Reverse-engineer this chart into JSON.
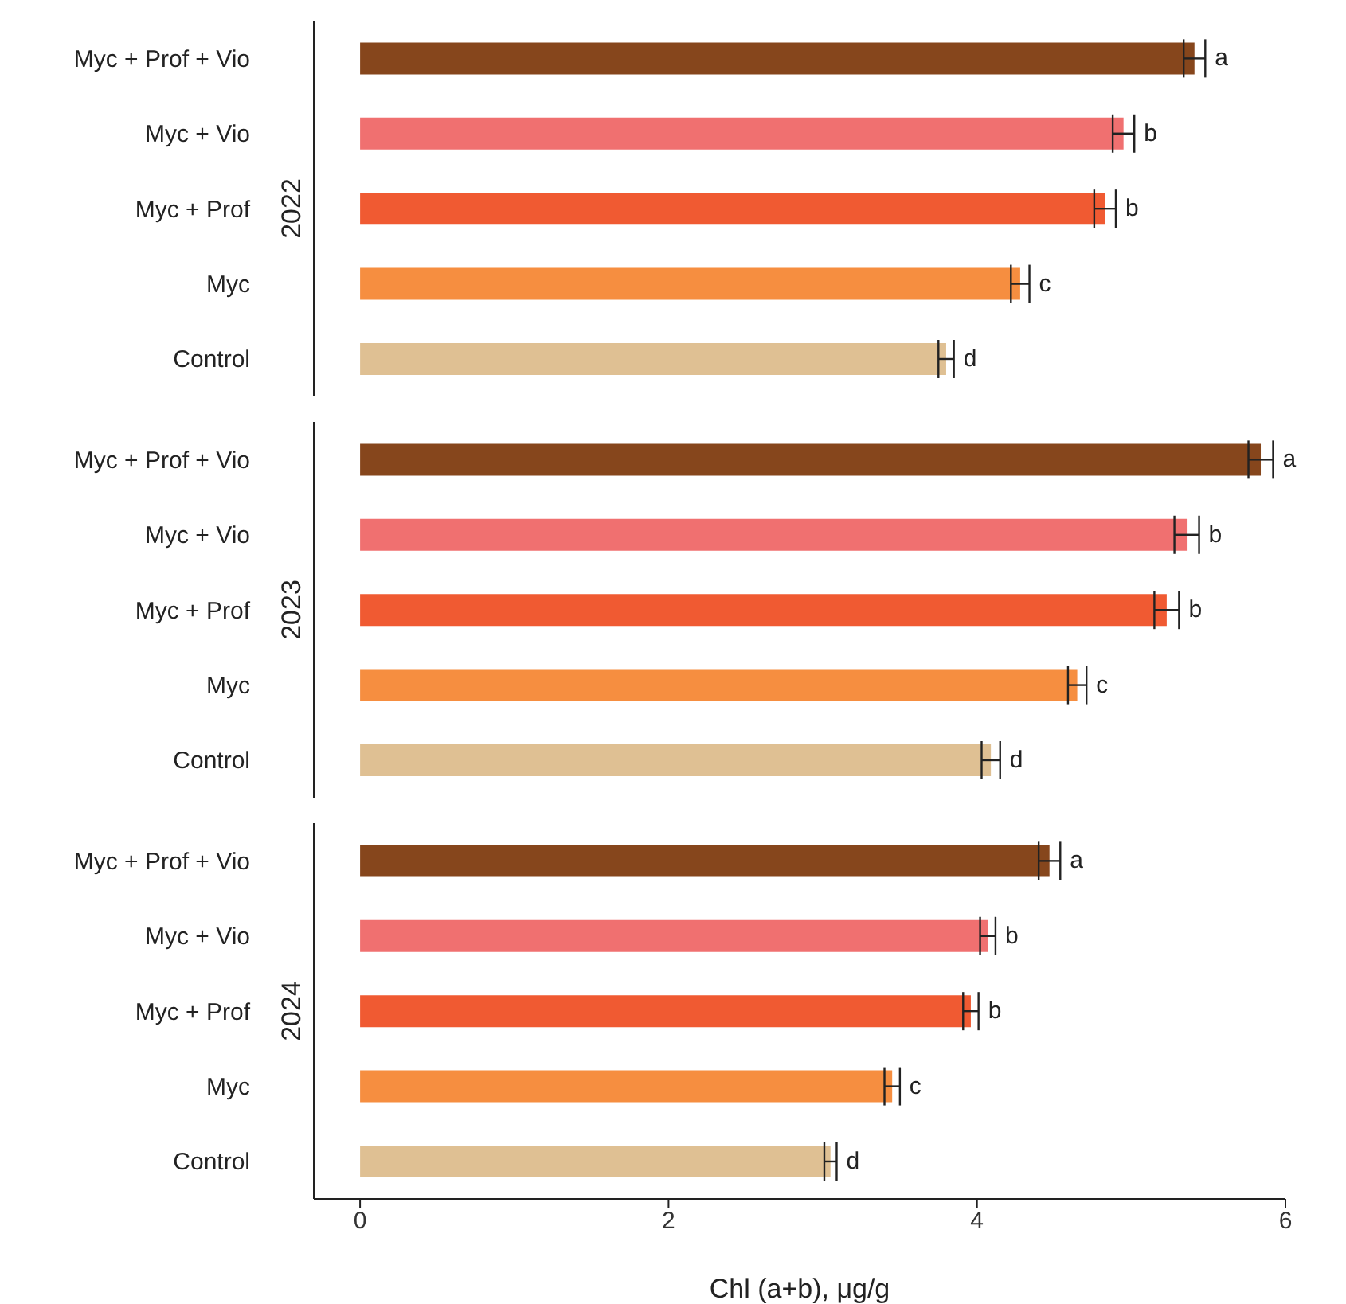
{
  "chart_data": [
    {
      "type": "bar",
      "orientation": "horizontal",
      "ylabel": "2022",
      "categories": [
        "Myc + Prof + Vio",
        "Myc + Vio",
        "Myc + Prof",
        "Myc",
        "Control"
      ],
      "values": [
        5.41,
        4.95,
        4.83,
        4.28,
        3.8
      ],
      "errors": [
        0.07,
        0.07,
        0.07,
        0.06,
        0.05
      ],
      "colors": [
        "#86461c",
        "#f07070",
        "#f05a32",
        "#f68e40",
        "#dfc093"
      ],
      "value_labels": [
        "a",
        "b",
        "b",
        "c",
        "d"
      ],
      "xlim": [
        -0.3,
        6
      ],
      "xticks": [
        0,
        2,
        4,
        6
      ],
      "tick_labels": "y"
    },
    {
      "type": "bar",
      "orientation": "horizontal",
      "ylabel": "2023",
      "categories": [
        "Myc + Prof + Vio",
        "Myc + Vio",
        "Myc + Prof",
        "Myc",
        "Control"
      ],
      "values": [
        5.84,
        5.36,
        5.23,
        4.65,
        4.09
      ],
      "errors": [
        0.08,
        0.08,
        0.08,
        0.06,
        0.06
      ],
      "colors": [
        "#86461c",
        "#f07070",
        "#f05a32",
        "#f68e40",
        "#dfc093"
      ],
      "value_labels": [
        "a",
        "b",
        "b",
        "c",
        "d"
      ],
      "xlim": [
        -0.3,
        6
      ],
      "xticks": [
        0,
        2,
        4,
        6
      ],
      "tick_labels": "y"
    },
    {
      "type": "bar",
      "orientation": "horizontal",
      "ylabel": "2024",
      "xlabel": "Chl (a+b), μg/g",
      "categories": [
        "Myc + Prof + Vio",
        "Myc + Vio",
        "Myc + Prof",
        "Myc",
        "Control"
      ],
      "values": [
        4.47,
        4.07,
        3.96,
        3.45,
        3.05
      ],
      "errors": [
        0.07,
        0.05,
        0.05,
        0.05,
        0.04
      ],
      "colors": [
        "#86461c",
        "#f07070",
        "#f05a32",
        "#f68e40",
        "#dfc093"
      ],
      "value_labels": [
        "a",
        "b",
        "b",
        "c",
        "d"
      ],
      "xlim": [
        -0.3,
        6
      ],
      "xticks": [
        0,
        2,
        4,
        6
      ]
    }
  ]
}
